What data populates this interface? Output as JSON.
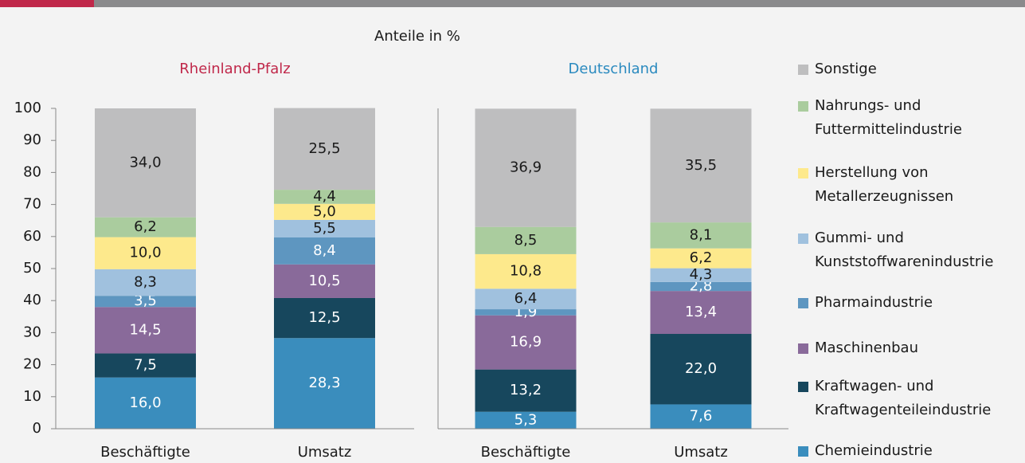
{
  "caption": "Anteile in %",
  "chart_data": [
    {
      "type": "stacked_bar",
      "title": "Rheinland-Pfalz",
      "title_color": "#c0284a",
      "categories": [
        "Beschäftigte",
        "Umsatz"
      ],
      "ylim": [
        0,
        100
      ],
      "yticks": [
        0,
        10,
        20,
        30,
        40,
        50,
        60,
        70,
        80,
        90,
        100
      ],
      "series": [
        {
          "name": "Chemieindustrie",
          "color": "#3a8dbd",
          "values": [
            16.0,
            28.3
          ],
          "value_labels": [
            "16,0",
            "28,3"
          ]
        },
        {
          "name": "Kraftwagen- und Kraftwagenteileindustrie",
          "color": "#17475d",
          "values": [
            7.5,
            12.5
          ],
          "value_labels": [
            "7,5",
            "12,5"
          ]
        },
        {
          "name": "Maschinenbau",
          "color": "#896a9a",
          "values": [
            14.5,
            10.5
          ],
          "value_labels": [
            "14,5",
            "10,5"
          ]
        },
        {
          "name": "Pharmaindustrie",
          "color": "#5e96c0",
          "values": [
            3.5,
            8.4
          ],
          "value_labels": [
            "3,5",
            "8,4"
          ]
        },
        {
          "name": "Gummi- und Kunststoffwarenindustrie",
          "color": "#a0c1de",
          "values": [
            8.3,
            5.5
          ],
          "value_labels": [
            "8,3",
            "5,5"
          ]
        },
        {
          "name": "Herstellung von Metallerzeugnissen",
          "color": "#fde98c",
          "values": [
            10.0,
            5.0
          ],
          "value_labels": [
            "10,0",
            "5,0"
          ]
        },
        {
          "name": "Nahrungs- und Futtermittelindustrie",
          "color": "#aacc9e",
          "values": [
            6.2,
            4.4
          ],
          "value_labels": [
            "6,2",
            "4,4"
          ]
        },
        {
          "name": "Sonstige",
          "color": "#bebebf",
          "values": [
            34.0,
            25.5
          ],
          "value_labels": [
            "34,0",
            "25,5"
          ]
        }
      ]
    },
    {
      "type": "stacked_bar",
      "title": "Deutschland",
      "title_color": "#2a8abf",
      "categories": [
        "Beschäftigte",
        "Umsatz"
      ],
      "ylim": [
        0,
        100
      ],
      "series": [
        {
          "name": "Chemieindustrie",
          "color": "#3a8dbd",
          "values": [
            5.3,
            7.6
          ],
          "value_labels": [
            "5,3",
            "7,6"
          ]
        },
        {
          "name": "Kraftwagen- und Kraftwagenteileindustrie",
          "color": "#17475d",
          "values": [
            13.2,
            22.0
          ],
          "value_labels": [
            "13,2",
            "22,0"
          ]
        },
        {
          "name": "Maschinenbau",
          "color": "#896a9a",
          "values": [
            16.9,
            13.4
          ],
          "value_labels": [
            "16,9",
            "13,4"
          ]
        },
        {
          "name": "Pharmaindustrie",
          "color": "#5e96c0",
          "values": [
            1.9,
            2.8
          ],
          "value_labels": [
            "1,9",
            "2,8"
          ]
        },
        {
          "name": "Gummi- und Kunststoffwarenindustrie",
          "color": "#a0c1de",
          "values": [
            6.4,
            4.3
          ],
          "value_labels": [
            "6,4",
            "4,3"
          ]
        },
        {
          "name": "Herstellung von Metallerzeugnissen",
          "color": "#fde98c",
          "values": [
            10.8,
            6.2
          ],
          "value_labels": [
            "10,8",
            "6,2"
          ]
        },
        {
          "name": "Nahrungs- und Futtermittelindustrie",
          "color": "#aacc9e",
          "values": [
            8.5,
            8.1
          ],
          "value_labels": [
            "8,5",
            "8,1"
          ]
        },
        {
          "name": "Sonstige",
          "color": "#bebebf",
          "values": [
            36.9,
            35.5
          ],
          "value_labels": [
            "36,9",
            "35,5"
          ]
        }
      ]
    }
  ]
}
